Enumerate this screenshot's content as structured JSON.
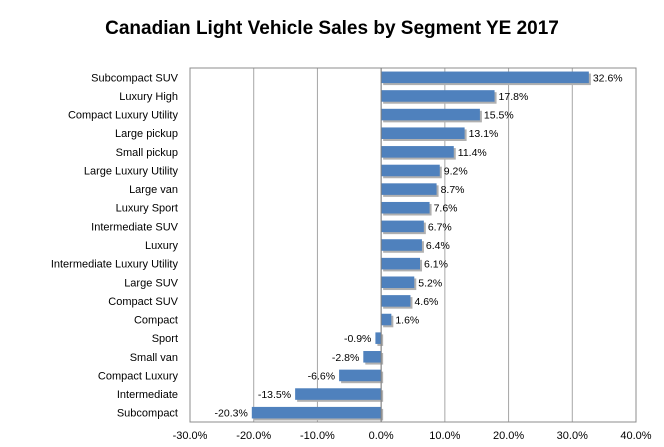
{
  "chart_data": {
    "type": "bar",
    "orientation": "horizontal",
    "title": "Canadian Light Vehicle Sales by Segment YE 2017",
    "xlabel": "",
    "ylabel": "",
    "categories": [
      "Subcompact SUV",
      "Luxury High",
      "Compact Luxury Utility",
      "Large pickup",
      "Small pickup",
      "Large Luxury Utility",
      "Large van",
      "Luxury Sport",
      "Intermediate SUV",
      "Luxury",
      "Intermediate Luxury Utility",
      "Large SUV",
      "Compact SUV",
      "Compact",
      "Sport",
      "Small van",
      "Compact Luxury",
      "Intermediate",
      "Subcompact"
    ],
    "values": [
      32.6,
      17.8,
      15.5,
      13.1,
      11.4,
      9.2,
      8.7,
      7.6,
      6.7,
      6.4,
      6.1,
      5.2,
      4.6,
      1.6,
      -0.9,
      -2.8,
      -6.6,
      -13.5,
      -20.3
    ],
    "value_labels": [
      "32.6%",
      "17.8%",
      "15.5%",
      "13.1%",
      "11.4%",
      "9.2%",
      "8.7%",
      "7.6%",
      "6.7%",
      "6.4%",
      "6.1%",
      "5.2%",
      "4.6%",
      "1.6%",
      "-0.9%",
      "-2.8%",
      "-6.6%",
      "-13.5%",
      "-20.3%"
    ],
    "xlim": [
      -30,
      40
    ],
    "x_ticks": [
      -30,
      -20,
      -10,
      0,
      10,
      20,
      30,
      40
    ],
    "x_tick_labels": [
      "-30.0%",
      "-20.0%",
      "-10.0%",
      "0.0%",
      "10.0%",
      "20.0%",
      "30.0%",
      "40.0%"
    ],
    "grid": "vertical",
    "legend": "none",
    "bar_color": "#4f81bd",
    "grid_color": "#a6a6a6"
  }
}
